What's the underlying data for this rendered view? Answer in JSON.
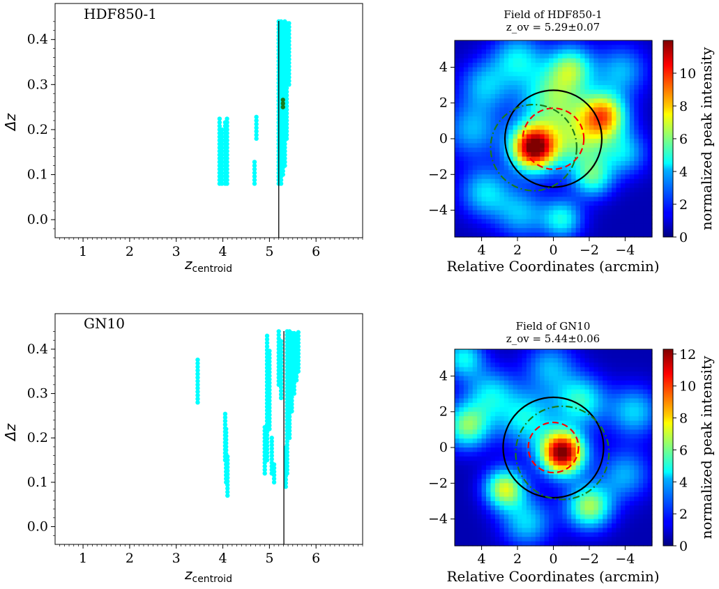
{
  "chart_data": [
    {
      "type": "scatter",
      "panel_label": "HDF850-1",
      "xlabel_main": "z",
      "xlabel_sub": "centroid",
      "ylabel": "Δz",
      "xlim": [
        0.4,
        7.0
      ],
      "ylim": [
        -0.04,
        0.48
      ],
      "xticks": [
        "1",
        "2",
        "3",
        "4",
        "5",
        "6"
      ],
      "yticks": [
        "0.0",
        "0.1",
        "0.2",
        "0.3",
        "0.4"
      ],
      "vline_x": 5.2,
      "point_color": "#00ffff",
      "highlight_color": "#1a7a1a",
      "groups": [
        {
          "x": 3.93,
          "y": [
            0.08,
            0.23
          ]
        },
        {
          "x": 3.98,
          "y": [
            0.08,
            0.2
          ]
        },
        {
          "x": 4.05,
          "y": [
            0.08,
            0.22
          ]
        },
        {
          "x": 4.09,
          "y": [
            0.08,
            0.23
          ]
        },
        {
          "x": 4.68,
          "y": [
            0.08,
            0.13
          ]
        },
        {
          "x": 4.72,
          "y": [
            0.18,
            0.23
          ]
        },
        {
          "x": 5.2,
          "y": [
            0.08,
            0.44
          ]
        },
        {
          "x": 5.25,
          "y": [
            0.08,
            0.44
          ]
        },
        {
          "x": 5.29,
          "y": [
            0.1,
            0.44
          ]
        },
        {
          "x": 5.33,
          "y": [
            0.12,
            0.44
          ]
        },
        {
          "x": 5.37,
          "y": [
            0.18,
            0.44
          ]
        },
        {
          "x": 5.42,
          "y": [
            0.3,
            0.44
          ]
        }
      ],
      "highlight": {
        "x": 5.29,
        "y": [
          0.25,
          0.27
        ]
      }
    },
    {
      "type": "heatmap",
      "title_line1": "Field of HDF850-1",
      "title_line2": "z_ov = 5.29±0.07",
      "xlabel": "Relative Coordinates (arcmin)",
      "colorbar_label": "normalized peak intensity",
      "xticks": [
        "4",
        "2",
        "0",
        "−2",
        "−4"
      ],
      "yticks": [
        "4",
        "2",
        "0",
        "−2",
        "−4"
      ],
      "colorbar_ticks": [
        "0",
        "2",
        "4",
        "6",
        "8",
        "10"
      ],
      "colorbar_max": 12,
      "extent": [
        5.5,
        -5.5,
        -5.5,
        5.5
      ],
      "blobs": [
        {
          "x": 1.1,
          "y": -0.5,
          "amp": 11.5,
          "s": 0.9
        },
        {
          "x": -2.8,
          "y": 1.3,
          "amp": 7.5,
          "s": 0.9
        },
        {
          "x": -1.5,
          "y": -0.2,
          "amp": 4.5,
          "s": 1.2
        },
        {
          "x": 0.0,
          "y": 2.2,
          "amp": 5.0,
          "s": 1.3
        },
        {
          "x": -1.0,
          "y": 4.0,
          "amp": 4.5,
          "s": 0.9
        },
        {
          "x": 2.0,
          "y": 4.5,
          "amp": 3.5,
          "s": 1.0
        },
        {
          "x": 3.8,
          "y": 3.0,
          "amp": 3.0,
          "s": 1.0
        },
        {
          "x": 4.5,
          "y": 0.5,
          "amp": 3.0,
          "s": 1.1
        },
        {
          "x": 3.8,
          "y": -3.0,
          "amp": 3.5,
          "s": 1.0
        },
        {
          "x": 1.8,
          "y": -4.2,
          "amp": 3.0,
          "s": 1.0
        },
        {
          "x": -0.5,
          "y": -4.5,
          "amp": 4.0,
          "s": 0.8
        },
        {
          "x": -2.2,
          "y": -2.2,
          "amp": 4.0,
          "s": 0.8
        },
        {
          "x": -4.0,
          "y": -0.8,
          "amp": 3.0,
          "s": 0.9
        },
        {
          "x": -3.8,
          "y": 3.8,
          "amp": 3.0,
          "s": 1.0
        }
      ],
      "circles": [
        {
          "cx": 0.0,
          "cy": 0.0,
          "r": 2.7,
          "color": "#000000",
          "dash": "solid"
        },
        {
          "cx": 0.0,
          "cy": 0.0,
          "r": 1.7,
          "color": "#ff0000",
          "dash": "dashed"
        },
        {
          "cx": 1.1,
          "cy": -0.5,
          "r": 2.4,
          "color": "#1a7a1a",
          "dash": "dashdot"
        }
      ]
    },
    {
      "type": "scatter",
      "panel_label": "GN10",
      "xlabel_main": "z",
      "xlabel_sub": "centroid",
      "ylabel": "Δz",
      "xlim": [
        0.4,
        7.0
      ],
      "ylim": [
        -0.04,
        0.48
      ],
      "xticks": [
        "1",
        "2",
        "3",
        "4",
        "5",
        "6"
      ],
      "yticks": [
        "0.0",
        "0.1",
        "0.2",
        "0.3",
        "0.4"
      ],
      "vline_x": 5.31,
      "point_color": "#00ffff",
      "groups": [
        {
          "x": 3.46,
          "y": [
            0.28,
            0.38
          ]
        },
        {
          "x": 4.05,
          "y": [
            0.15,
            0.26
          ]
        },
        {
          "x": 4.07,
          "y": [
            0.1,
            0.22
          ]
        },
        {
          "x": 4.1,
          "y": [
            0.07,
            0.16
          ]
        },
        {
          "x": 4.9,
          "y": [
            0.12,
            0.23
          ]
        },
        {
          "x": 4.95,
          "y": [
            0.15,
            0.43
          ]
        },
        {
          "x": 5.0,
          "y": [
            0.22,
            0.4
          ]
        },
        {
          "x": 5.05,
          "y": [
            0.12,
            0.2
          ]
        },
        {
          "x": 5.1,
          "y": [
            0.1,
            0.14
          ]
        },
        {
          "x": 5.2,
          "y": [
            0.32,
            0.44
          ]
        },
        {
          "x": 5.25,
          "y": [
            0.29,
            0.42
          ]
        },
        {
          "x": 5.35,
          "y": [
            0.09,
            0.18
          ]
        },
        {
          "x": 5.38,
          "y": [
            0.12,
            0.44
          ]
        },
        {
          "x": 5.43,
          "y": [
            0.2,
            0.44
          ]
        },
        {
          "x": 5.48,
          "y": [
            0.26,
            0.44
          ]
        },
        {
          "x": 5.53,
          "y": [
            0.3,
            0.44
          ]
        },
        {
          "x": 5.58,
          "y": [
            0.33,
            0.44
          ]
        },
        {
          "x": 5.62,
          "y": [
            0.35,
            0.44
          ]
        }
      ]
    },
    {
      "type": "heatmap",
      "title_line1": "Field of GN10",
      "title_line2": "z_ov = 5.44±0.06",
      "xlabel": "Relative Coordinates (arcmin)",
      "colorbar_label": "normalized peak intensity",
      "xticks": [
        "4",
        "2",
        "0",
        "−2",
        "−4"
      ],
      "yticks": [
        "4",
        "2",
        "0",
        "−2",
        "−4"
      ],
      "colorbar_ticks": [
        "0",
        "2",
        "4",
        "6",
        "8",
        "10",
        "12"
      ],
      "colorbar_max": 12.3,
      "extent": [
        5.5,
        -5.5,
        -5.5,
        5.5
      ],
      "blobs": [
        {
          "x": -0.5,
          "y": -0.3,
          "amp": 12.0,
          "s": 0.85
        },
        {
          "x": 2.7,
          "y": -2.3,
          "amp": 6.5,
          "s": 0.8
        },
        {
          "x": -2.0,
          "y": -3.3,
          "amp": 6.0,
          "s": 0.9
        },
        {
          "x": 4.8,
          "y": 1.2,
          "amp": 5.5,
          "s": 0.9
        },
        {
          "x": -1.5,
          "y": 2.6,
          "amp": 4.5,
          "s": 1.0
        },
        {
          "x": 1.5,
          "y": 1.6,
          "amp": 4.0,
          "s": 1.1
        },
        {
          "x": 3.5,
          "y": 3.0,
          "amp": 3.5,
          "s": 1.0
        },
        {
          "x": 5.0,
          "y": 5.0,
          "amp": 4.0,
          "s": 0.8
        },
        {
          "x": -4.5,
          "y": 2.0,
          "amp": 3.5,
          "s": 1.0
        },
        {
          "x": 1.5,
          "y": -4.2,
          "amp": 3.5,
          "s": 1.0
        },
        {
          "x": -4.0,
          "y": -1.5,
          "amp": 3.0,
          "s": 1.0
        },
        {
          "x": 0.2,
          "y": 4.5,
          "amp": 3.0,
          "s": 1.0
        }
      ],
      "circles": [
        {
          "cx": 0.0,
          "cy": 0.0,
          "r": 2.8,
          "color": "#000000",
          "dash": "solid"
        },
        {
          "cx": 0.0,
          "cy": 0.0,
          "r": 1.4,
          "color": "#ff0000",
          "dash": "dashed"
        },
        {
          "cx": -0.5,
          "cy": -0.3,
          "r": 2.6,
          "color": "#1a7a1a",
          "dash": "dashdot"
        }
      ]
    }
  ]
}
